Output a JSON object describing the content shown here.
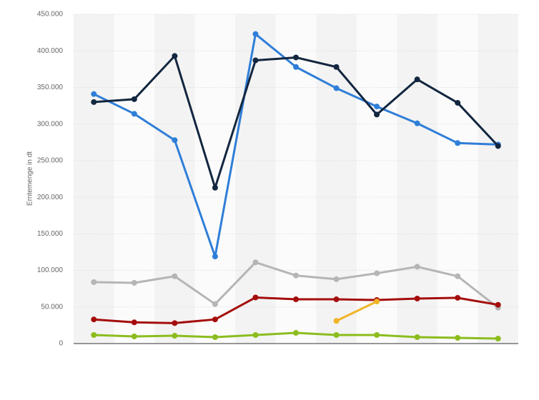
{
  "chart_data": {
    "type": "line",
    "y_label": "Erntemenge in dt",
    "categories": [
      null,
      null,
      null,
      null,
      null,
      null,
      null,
      null,
      null,
      null,
      null
    ],
    "ylim": [
      0,
      450000
    ],
    "yticks": [
      0,
      {
        "value": 50000,
        "label": "50.000"
      },
      {
        "value": 100000,
        "label": "100.000"
      },
      {
        "value": 150000,
        "label": "150.000"
      },
      {
        "value": 200000,
        "label": "200.000"
      },
      {
        "value": 250000,
        "label": "250.000"
      },
      {
        "value": 300000,
        "label": "300.000"
      },
      {
        "value": 350000,
        "label": "350.000"
      },
      {
        "value": 400000,
        "label": "400.000"
      },
      {
        "value": 450000,
        "label": "450.000"
      }
    ],
    "grid": true,
    "series": [
      {
        "color": "#b5b5b5",
        "values": [
          84000,
          83000,
          92000,
          54000,
          111000,
          93000,
          88000,
          96000,
          105000,
          92000,
          49000
        ]
      },
      {
        "color": "#a50d0d",
        "values": [
          33000,
          29000,
          28000,
          33000,
          63000,
          60500,
          60500,
          59500,
          61500,
          62500,
          53000
        ]
      },
      {
        "color": "#f0b428",
        "values": [
          null,
          null,
          null,
          null,
          null,
          null,
          31000,
          57500,
          null,
          null,
          null
        ]
      },
      {
        "color": "#8cbd1e",
        "values": [
          11700,
          9800,
          10700,
          8800,
          11700,
          14600,
          11700,
          11700,
          8800,
          7800,
          6800
        ]
      },
      {
        "color": "#2f7ed8",
        "values": [
          341000,
          314000,
          278000,
          119000,
          423000,
          378000,
          349000,
          324000,
          301000,
          274000,
          272000
        ]
      },
      {
        "color": "#12263f",
        "values": [
          330000,
          334000,
          393000,
          213000,
          387000,
          391000,
          378000,
          313000,
          361000,
          329000,
          270000
        ]
      }
    ]
  }
}
